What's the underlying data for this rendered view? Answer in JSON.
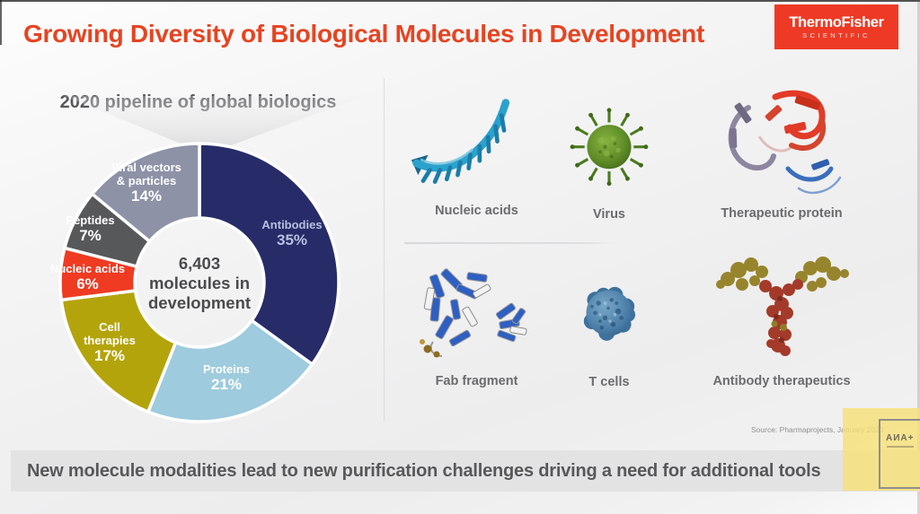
{
  "header": {
    "title": "Growing Diversity of Biological Molecules in Development",
    "logo": {
      "line1": "ThermoFisher",
      "line2": "SCIENTIFIC"
    }
  },
  "colors": {
    "title_accent": "#e64422",
    "logo_bg": "#ee3a25",
    "banner_bg": "#e3e3e4",
    "note_bg": "#f7e074"
  },
  "chart_data": {
    "type": "pie",
    "subtype": "donut",
    "title": "2020 pipeline of global biologics",
    "center_label": {
      "line1": "6,403",
      "line2": "molecules in",
      "line3": "development"
    },
    "categories": [
      "Antibodies",
      "Proteins",
      "Cell therapies",
      "Nucleic acids",
      "Peptides",
      "Viral vectors & particles"
    ],
    "values": [
      35,
      21,
      17,
      6,
      7,
      14
    ],
    "units": "%",
    "segments": [
      {
        "name": "Antibodies",
        "lines": [
          "Antibodies"
        ],
        "pct_text": "35%",
        "value": 35,
        "color": "#272c69",
        "text_color": "#b9bfe0"
      },
      {
        "name": "Proteins",
        "lines": [
          "Proteins"
        ],
        "pct_text": "21%",
        "value": 21,
        "color": "#9ecbdd",
        "text_color": "#ffffff"
      },
      {
        "name": "Cell therapies",
        "lines": [
          "Cell",
          "therapies"
        ],
        "pct_text": "17%",
        "value": 17,
        "color": "#b4a40c",
        "text_color": "#ffffff"
      },
      {
        "name": "Nucleic acids",
        "lines": [
          "Nucleic acids"
        ],
        "pct_text": "6%",
        "value": 6,
        "color": "#ee3b22",
        "text_color": "#ffffff"
      },
      {
        "name": "Peptides",
        "lines": [
          "Peptides"
        ],
        "pct_text": "7%",
        "value": 7,
        "color": "#57585a",
        "text_color": "#ffffff"
      },
      {
        "name": "Viral vectors & particles",
        "lines": [
          "Viral vectors",
          "& particles"
        ],
        "pct_text": "14%",
        "value": 14,
        "color": "#8d92a7",
        "text_color": "#ffffff"
      }
    ]
  },
  "modalities": {
    "items": [
      {
        "label": "Nucleic acids",
        "icon": "nucleic-acids-icon"
      },
      {
        "label": "Virus",
        "icon": "virus-icon"
      },
      {
        "label": "Therapeutic protein",
        "icon": "therapeutic-protein-icon"
      },
      {
        "label": "Fab fragment",
        "icon": "fab-fragment-icon"
      },
      {
        "label": "T cells",
        "icon": "t-cells-icon"
      },
      {
        "label": "Antibody therapeutics",
        "icon": "antibody-therapeutics-icon"
      }
    ]
  },
  "source_note": "Source: Pharmaprojects, January 2020",
  "footer": {
    "banner": "New molecule modalities lead to new purification challenges driving a need for additional tools"
  },
  "watermark": {
    "text": "АИА+"
  }
}
